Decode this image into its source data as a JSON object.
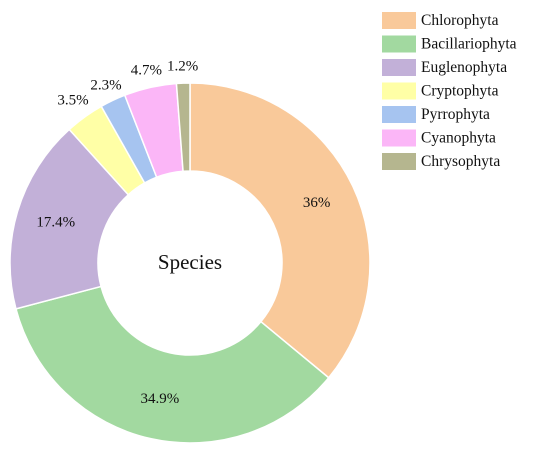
{
  "chart_data": {
    "type": "pie",
    "variant": "donut",
    "center_text": "Species",
    "slices": [
      {
        "name": "Chlorophyta",
        "value": 36,
        "label": "36%",
        "color": "#F9C99A"
      },
      {
        "name": "Bacillariophyta",
        "value": 34.9,
        "label": "34.9%",
        "color": "#A2D9A0"
      },
      {
        "name": "Euglenophyta",
        "value": 17.4,
        "label": "17.4%",
        "color": "#C2B0D8"
      },
      {
        "name": "Cryptophyta",
        "value": 3.5,
        "label": "3.5%",
        "color": "#FFFFA6"
      },
      {
        "name": "Pyrrophyta",
        "value": 2.3,
        "label": "2.3%",
        "color": "#A6C4F0"
      },
      {
        "name": "Cyanophyta",
        "value": 4.7,
        "label": "4.7%",
        "color": "#FBB6F7"
      },
      {
        "name": "Chrysophyta",
        "value": 1.2,
        "label": "1.2%",
        "color": "#B5B68F"
      }
    ],
    "legend_position": "top-right"
  }
}
